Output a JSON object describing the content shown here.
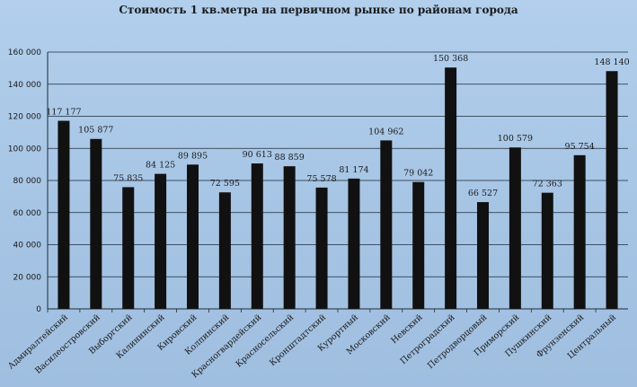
{
  "chart_data": {
    "type": "bar",
    "title": "Стоимость 1 кв.метра на первичном  рынке по районам  города",
    "ylim": [
      0,
      160000
    ],
    "yticks": [
      0,
      20000,
      40000,
      60000,
      80000,
      100000,
      120000,
      140000,
      160000
    ],
    "ytick_labels": [
      "0",
      "20 000",
      "40 000",
      "60 000",
      "80 000",
      "100 000",
      "120 000",
      "140 000",
      "160 000"
    ],
    "grid": true,
    "bar_color": "#111111",
    "categories": [
      "Адмиралтейский",
      "Василеостровский",
      "Выборгский",
      "Калининский",
      "Кировский",
      "Колпинский",
      "Красногвардейский",
      "Красносельский",
      "Кронштадтский",
      "Курортный",
      "Московский",
      "Невский",
      "Петроградский",
      "Петродворцовый",
      "Приморский",
      "Пушкинский",
      "Фрунзенский",
      "Центральный"
    ],
    "values": [
      117177,
      105877,
      75835,
      84125,
      89895,
      72595,
      90613,
      88859,
      75578,
      81174,
      104962,
      79042,
      150368,
      66527,
      100579,
      72363,
      95754,
      148140
    ],
    "value_labels": [
      "117 177",
      "105 877",
      "75 835",
      "84 125",
      "89 895",
      "72 595",
      "90 613",
      "88 859",
      "75 578",
      "81 174",
      "104 962",
      "79 042",
      "150 368",
      "66 527",
      "100 579",
      "72 363",
      "95 754",
      "148 140"
    ]
  }
}
